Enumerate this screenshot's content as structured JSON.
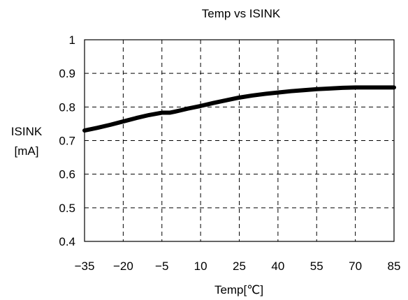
{
  "chart_data": {
    "type": "line",
    "title": "Temp vs ISINK",
    "xlabel": "Temp[℃]",
    "ylabel_lines": [
      "ISINK",
      "[mA]"
    ],
    "x_ticks": [
      "-35",
      "-20",
      "-5",
      "10",
      "25",
      "40",
      "55",
      "70",
      "85"
    ],
    "y_ticks": [
      "0.4",
      "0.5",
      "0.6",
      "0.7",
      "0.8",
      "0.9",
      "1"
    ],
    "xlim": [
      -35,
      85
    ],
    "ylim": [
      0.4,
      1.0
    ],
    "grid": "dashed",
    "legend": "none",
    "line_color": "#000000",
    "series": [
      {
        "x": [
          -35,
          -30,
          -25,
          -20,
          -15,
          -10,
          -5,
          -2,
          0,
          5,
          10,
          15,
          20,
          25,
          30,
          35,
          40,
          45,
          50,
          55,
          60,
          65,
          70,
          75,
          80,
          85
        ],
        "y": [
          0.73,
          0.738,
          0.747,
          0.757,
          0.767,
          0.776,
          0.783,
          0.783,
          0.786,
          0.795,
          0.803,
          0.812,
          0.82,
          0.828,
          0.834,
          0.839,
          0.843,
          0.847,
          0.85,
          0.853,
          0.855,
          0.857,
          0.858,
          0.858,
          0.858,
          0.858
        ]
      }
    ]
  }
}
